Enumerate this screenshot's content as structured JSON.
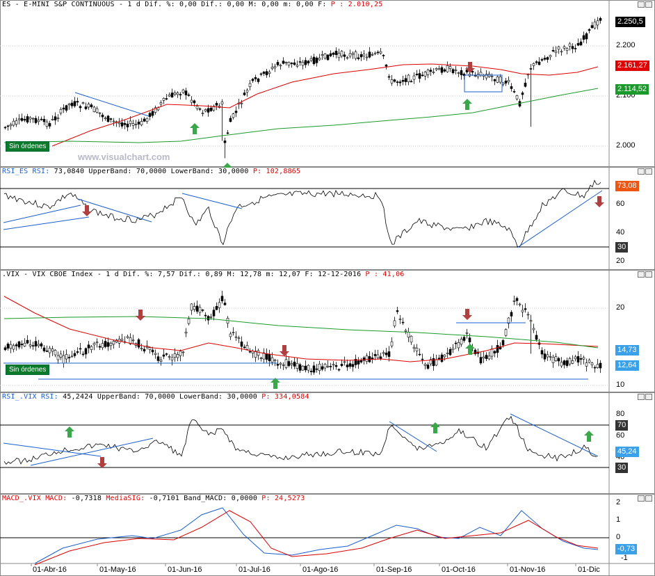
{
  "panes": {
    "es": {
      "header": {
        "text": "ES - E-MINI S&P CONTINUOUS -  1 d Dif. %: 0,00 Dif.: 0,00 M: 0,00 m: 0,00 F:  ",
        "price": "P : 2.010,25"
      },
      "ticks": [
        "2.200",
        "2.100",
        "2.000"
      ],
      "badges": {
        "last": "2.250,5",
        "red_ma": "2.161,27",
        "green_ma": "2.114,52"
      },
      "orders_label": "Sin órdenes",
      "watermark": "www.visualchart.com",
      "colors": {
        "red_ma": "#e00000",
        "green_ma": "#1a9a2a",
        "trend": "#1a5fd0"
      }
    },
    "rsi_es": {
      "header": {
        "name": "RSI_ES RSI:",
        "text": " 73,0840 UpperBand: 70,0000 LowerBand: 30,0000 ",
        "price": "P: 102,8865"
      },
      "ticks": [
        "60",
        "40",
        "20"
      ],
      "badges": {
        "value": "73,08",
        "lower": "30"
      },
      "colors": {
        "badge": "#ee5511"
      }
    },
    "vix": {
      "header": {
        "text": ".VIX - VIX CBOE Index -  1 d Dif. %: 7,57 Dif.: 0,89 M: 12,78 m: 12,07 F: 12-12-2016 ",
        "price": "P : 41,06"
      },
      "ticks": [
        "20",
        "10"
      ],
      "badges": {
        "green_ma": "14,73",
        "last": "12,64"
      },
      "orders_label": "Sin órdenes"
    },
    "rsi_vix": {
      "header": {
        "name": "RSI_.VIX RSI:",
        "text": " 45,2424 UpperBand: 70,0000 LowerBand: 30,0000 ",
        "price": "P: 334,0584"
      },
      "ticks": [
        "80",
        "60",
        "40"
      ],
      "badges": {
        "upper": "70",
        "value": "45,24",
        "lower": "30"
      }
    },
    "macd": {
      "header": {
        "name": "MACD_.VIX MACD:",
        "text1": " -0,7318 ",
        "sig_name": "MediaSIG:",
        "text2": " -0,7101 Band_MACD: 0,0000 ",
        "price": "P: 24,5273"
      },
      "ticks": [
        "2",
        "1",
        "0",
        "-1"
      ],
      "badges": {
        "value": "-0,73"
      }
    }
  },
  "x_axis": [
    "01-Abr-16",
    "01-May-16",
    "01-Jun-16",
    "01-Jul-16",
    "01-Ago-16",
    "01-Sep-16",
    "01-Oct-16",
    "01-Nov-16",
    "01-Dic"
  ]
}
